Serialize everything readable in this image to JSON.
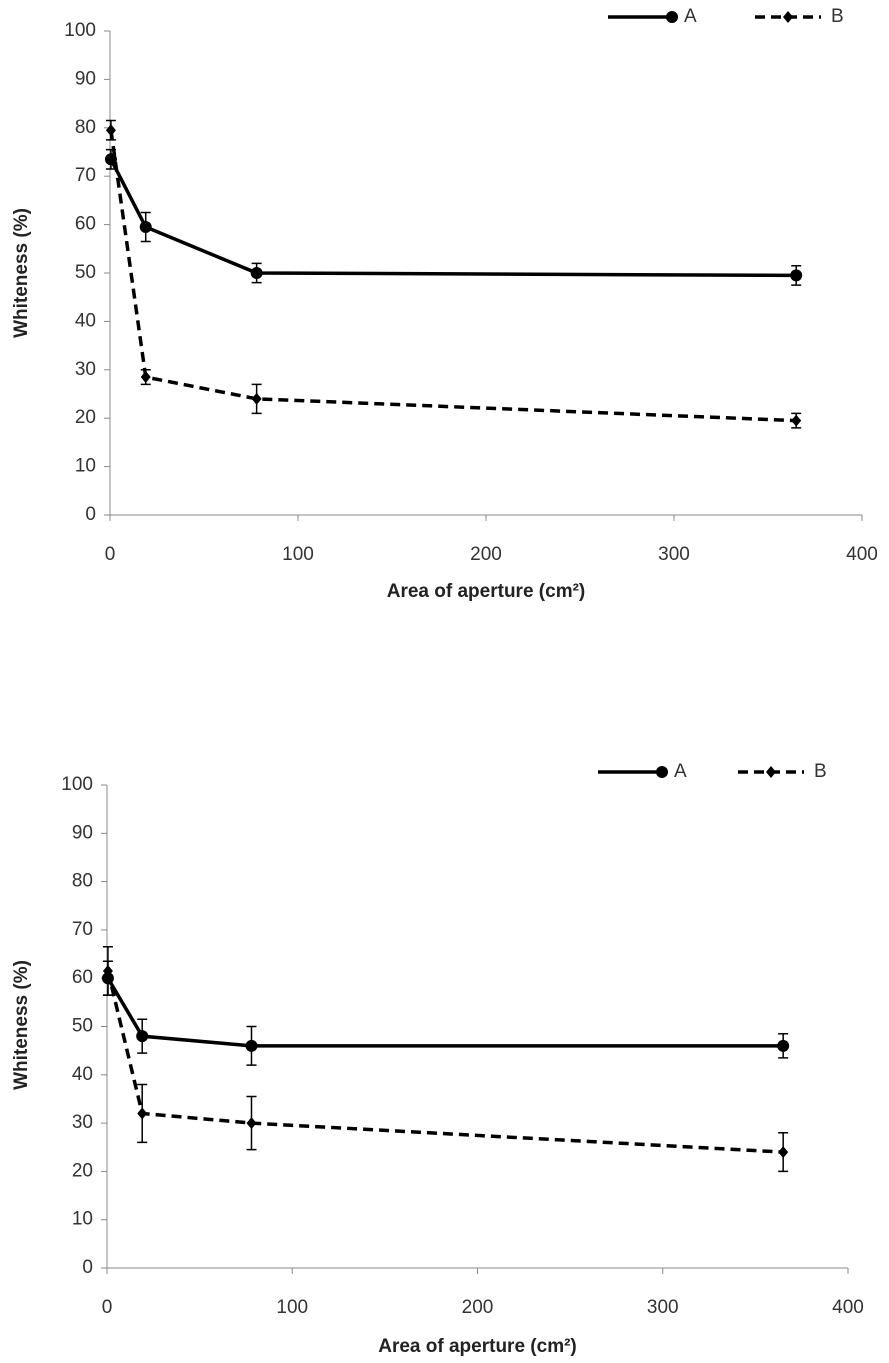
{
  "chart_data": [
    {
      "type": "line",
      "x_label": "Area of aperture (cm²)",
      "y_label": "Whiteness (%)",
      "x": [
        0.5,
        19,
        78,
        365
      ],
      "series": [
        {
          "name": "A",
          "color": "#000000",
          "line_style": "solid",
          "marker": "circle",
          "values": [
            73.5,
            59.5,
            50,
            49.5
          ],
          "errors": [
            2,
            3,
            2,
            2
          ]
        },
        {
          "name": "B",
          "color": "#000000",
          "line_style": "dashed",
          "marker": "diamond",
          "values": [
            79.5,
            28.5,
            24,
            19.5
          ],
          "errors": [
            2,
            1.5,
            3,
            1.5
          ]
        }
      ],
      "xlim": [
        0,
        400
      ],
      "xticks": [
        0,
        100,
        200,
        300,
        400
      ],
      "ylim": [
        0,
        100
      ],
      "yticks": [
        0,
        10,
        20,
        30,
        40,
        50,
        60,
        70,
        80,
        90,
        100
      ],
      "grid": false,
      "legend": "top-right"
    },
    {
      "type": "line",
      "x_label": "Area of aperture (cm²)",
      "y_label": "Whiteness (%)",
      "x": [
        0.5,
        19,
        78,
        365
      ],
      "series": [
        {
          "name": "A",
          "color": "#000000",
          "line_style": "solid",
          "marker": "circle",
          "values": [
            60,
            48,
            46,
            46
          ],
          "errors": [
            3.5,
            3.5,
            4,
            2.5
          ]
        },
        {
          "name": "B",
          "color": "#000000",
          "line_style": "dashed",
          "marker": "diamond",
          "values": [
            61.5,
            32,
            30,
            24
          ],
          "errors": [
            5,
            6,
            5.5,
            4
          ]
        }
      ],
      "xlim": [
        0,
        400
      ],
      "xticks": [
        0,
        100,
        200,
        300,
        400
      ],
      "ylim": [
        0,
        100
      ],
      "yticks": [
        0,
        10,
        20,
        30,
        40,
        50,
        60,
        70,
        80,
        90,
        100
      ],
      "grid": false,
      "legend": "top-right"
    }
  ]
}
